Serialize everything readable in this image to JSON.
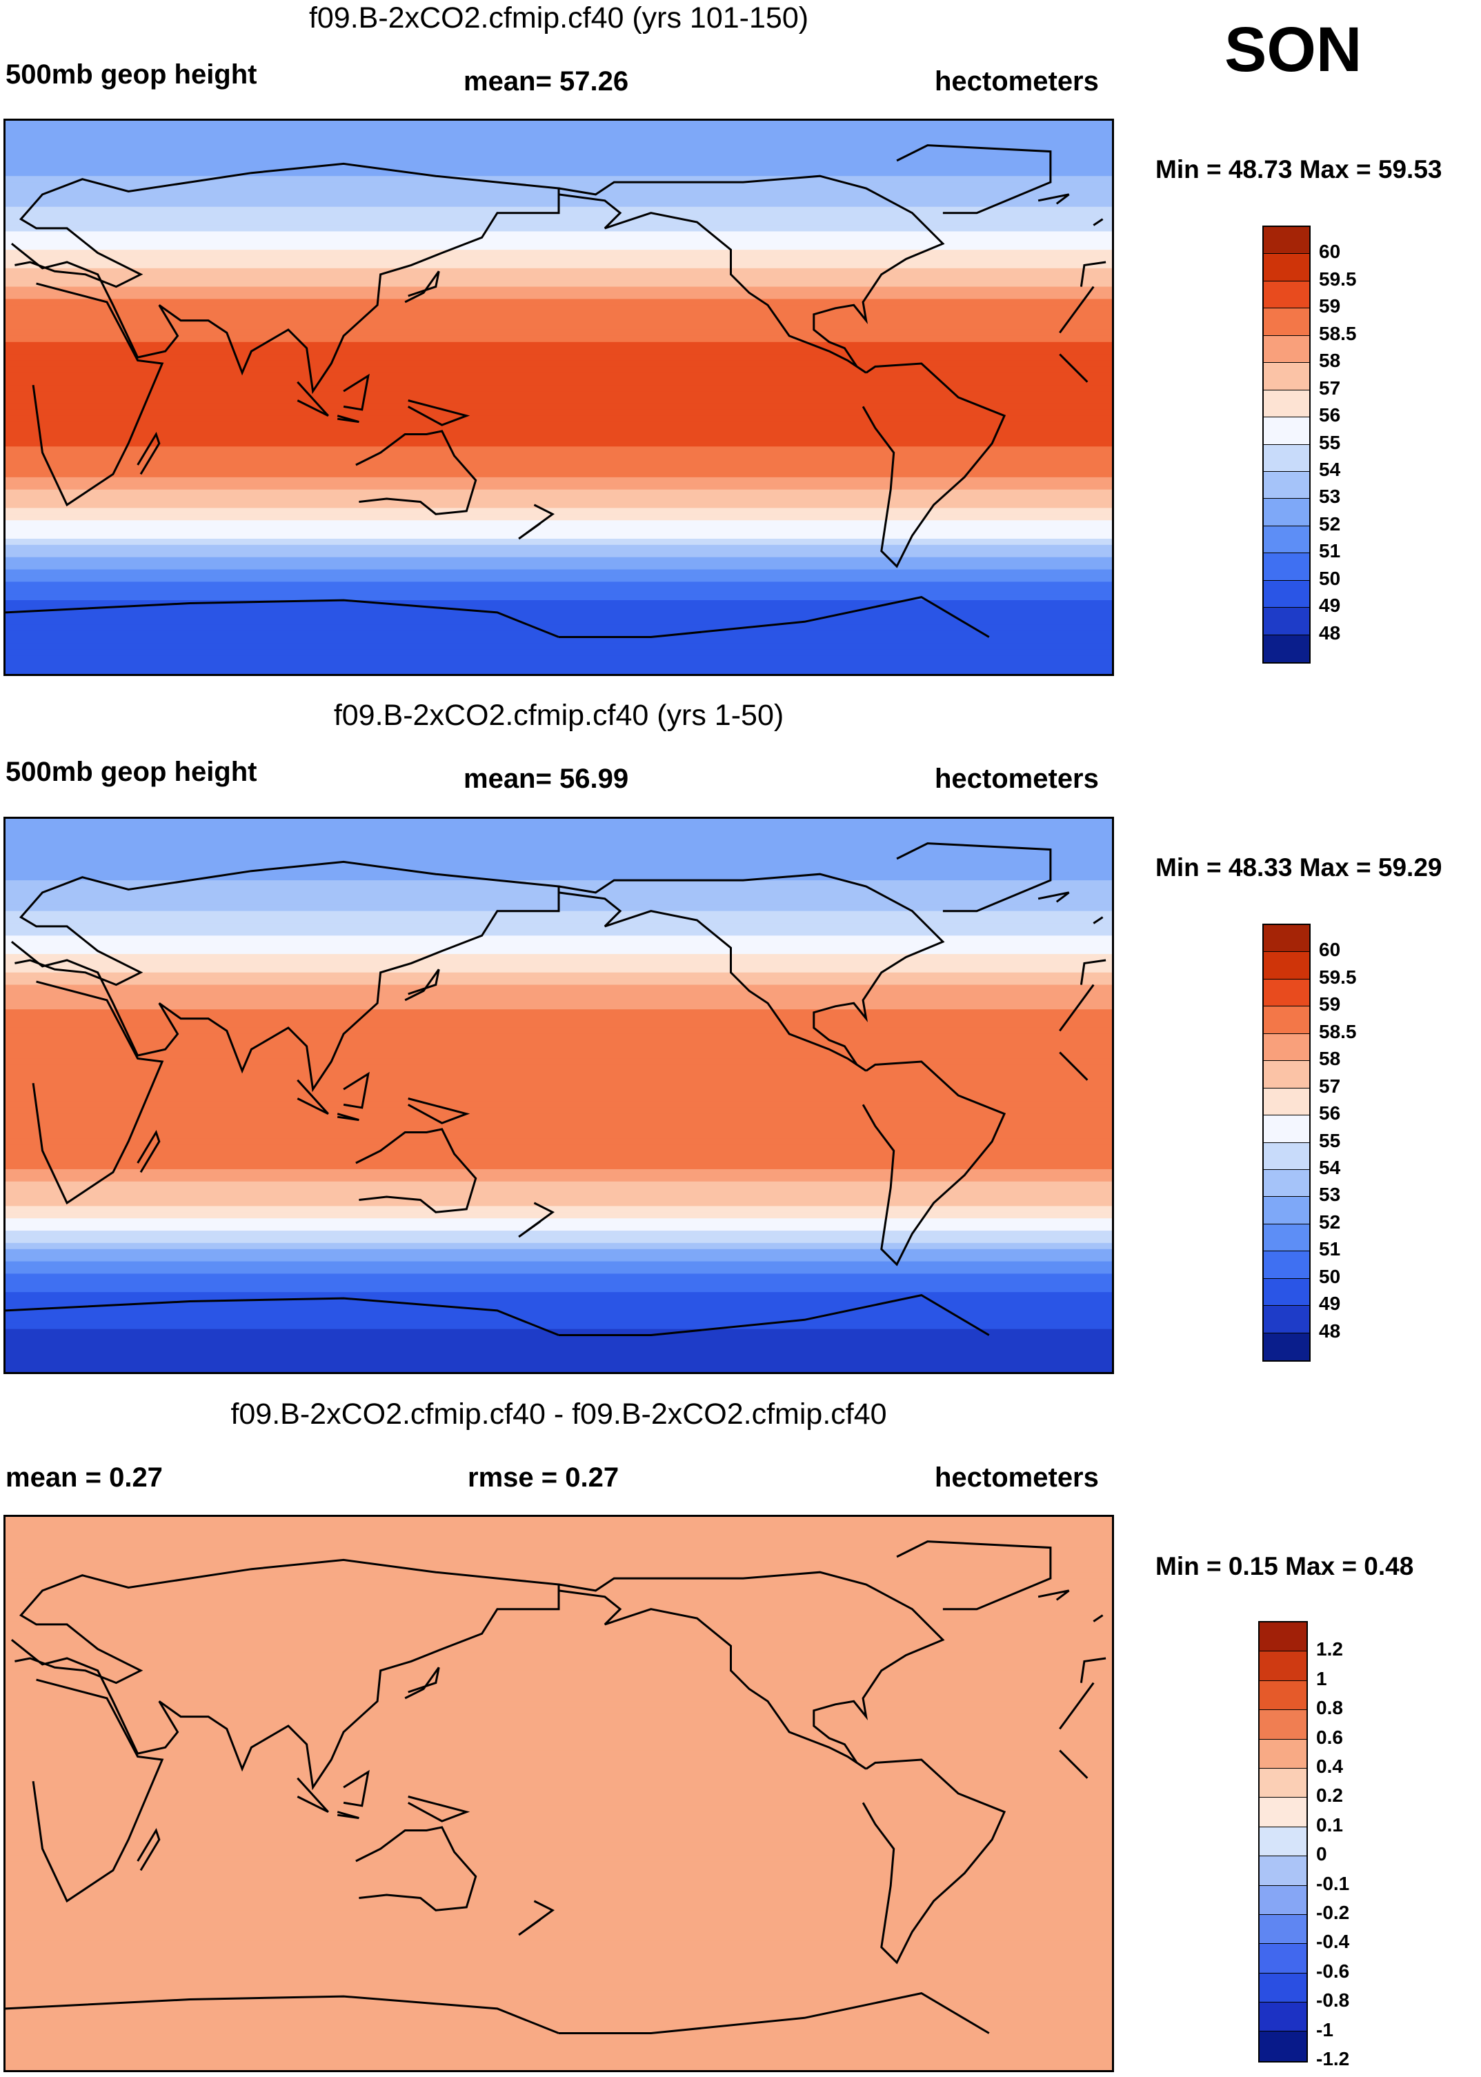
{
  "season": "SON",
  "colors": {
    "palette_main": [
      "#0a1e8c",
      "#1e3cc8",
      "#2a55e6",
      "#3f70f2",
      "#5d8ef6",
      "#7ea8f8",
      "#a5c3f9",
      "#c8dbfa",
      "#f4f7ff",
      "#fde3d3",
      "#fbc3a6",
      "#f9a07b",
      "#f37748",
      "#e84b1e",
      "#cf3409",
      "#a52406",
      "#7f1403"
    ],
    "palette_diff": [
      "#081a8a",
      "#1c32c4",
      "#2a4fe2",
      "#4168ee",
      "#5f86f2",
      "#86a6f5",
      "#abc4f7",
      "#d6e4fa",
      "#fde8dc",
      "#fbcfb5",
      "#f8aa85",
      "#f07e52",
      "#e55a2a",
      "#cf3a12",
      "#a12008"
    ],
    "land_line": "#000000"
  },
  "chart_data": [
    {
      "type": "heatmap",
      "title": "f09.B-2xCO2.cfmip.cf40 (yrs 101-150)",
      "left_label": "500mb geop height",
      "center_label": "mean=  57.26",
      "right_label": "hectometers",
      "minmax": "Min =  48.73 Max =  59.53",
      "min": 48.73,
      "max": 59.53,
      "mean": 57.26,
      "colorbar_ticks": [
        "60",
        "59.5",
        "59",
        "58.5",
        "58",
        "57",
        "56",
        "55",
        "54",
        "53",
        "52",
        "51",
        "50",
        "49",
        "48"
      ],
      "levels": [
        48,
        49,
        50,
        51,
        52,
        53,
        54,
        55,
        56,
        57,
        58,
        58.5,
        59,
        59.5,
        60
      ],
      "lat_profile": [
        {
          "lat": 90,
          "v": 52.4
        },
        {
          "lat": 75,
          "v": 52.8
        },
        {
          "lat": 60,
          "v": 54.2
        },
        {
          "lat": 45,
          "v": 56.4
        },
        {
          "lat": 35,
          "v": 58.3
        },
        {
          "lat": 25,
          "v": 58.9
        },
        {
          "lat": 10,
          "v": 59.1
        },
        {
          "lat": 0,
          "v": 59.1
        },
        {
          "lat": -15,
          "v": 59.0
        },
        {
          "lat": -25,
          "v": 58.6
        },
        {
          "lat": -35,
          "v": 57.2
        },
        {
          "lat": -45,
          "v": 55.0
        },
        {
          "lat": -55,
          "v": 52.0
        },
        {
          "lat": -65,
          "v": 50.0
        },
        {
          "lat": -75,
          "v": 49.4
        },
        {
          "lat": -90,
          "v": 49.2
        }
      ]
    },
    {
      "type": "heatmap",
      "title": "f09.B-2xCO2.cfmip.cf40 (yrs 1-50)",
      "left_label": "500mb geop height",
      "center_label": "mean=  56.99",
      "right_label": "hectometers",
      "minmax": "Min =  48.33 Max =  59.29",
      "min": 48.33,
      "max": 59.29,
      "mean": 56.99,
      "colorbar_ticks": [
        "60",
        "59.5",
        "59",
        "58.5",
        "58",
        "57",
        "56",
        "55",
        "54",
        "53",
        "52",
        "51",
        "50",
        "49",
        "48"
      ],
      "levels": [
        48,
        49,
        50,
        51,
        52,
        53,
        54,
        55,
        56,
        57,
        58,
        58.5,
        59,
        59.5,
        60
      ],
      "lat_profile": [
        {
          "lat": 90,
          "v": 52.2
        },
        {
          "lat": 75,
          "v": 52.6
        },
        {
          "lat": 60,
          "v": 54.0
        },
        {
          "lat": 45,
          "v": 56.1
        },
        {
          "lat": 35,
          "v": 58.1
        },
        {
          "lat": 25,
          "v": 58.7
        },
        {
          "lat": 10,
          "v": 58.7
        },
        {
          "lat": 0,
          "v": 58.8
        },
        {
          "lat": -15,
          "v": 58.9
        },
        {
          "lat": -25,
          "v": 58.4
        },
        {
          "lat": -35,
          "v": 57.0
        },
        {
          "lat": -45,
          "v": 54.8
        },
        {
          "lat": -55,
          "v": 51.7
        },
        {
          "lat": -65,
          "v": 49.6
        },
        {
          "lat": -75,
          "v": 49.0
        },
        {
          "lat": -90,
          "v": 48.8
        }
      ]
    },
    {
      "type": "heatmap",
      "title": "f09.B-2xCO2.cfmip.cf40 - f09.B-2xCO2.cfmip.cf40",
      "left_label": "mean =   0.27",
      "center_label": "rmse =   0.27",
      "right_label": "hectometers",
      "minmax": "Min =   0.15 Max =   0.48",
      "min": 0.15,
      "max": 0.48,
      "mean": 0.27,
      "rmse": 0.27,
      "colorbar_ticks": [
        "1.2",
        "1",
        "0.8",
        "0.6",
        "0.4",
        "0.2",
        "0.1",
        "0",
        "-0.1",
        "-0.2",
        "-0.4",
        "-0.6",
        "-0.8",
        "-1",
        "-1.2"
      ],
      "levels": [
        -1.2,
        -1,
        -0.8,
        -0.6,
        -0.4,
        -0.2,
        -0.1,
        0,
        0.1,
        0.2,
        0.4,
        0.6,
        0.8,
        1,
        1.2
      ],
      "lat_profile": [
        {
          "lat": 90,
          "v": 0.3
        },
        {
          "lat": 0,
          "v": 0.27
        },
        {
          "lat": -50,
          "v": 0.3
        },
        {
          "lat": -90,
          "v": 0.3
        }
      ]
    }
  ]
}
